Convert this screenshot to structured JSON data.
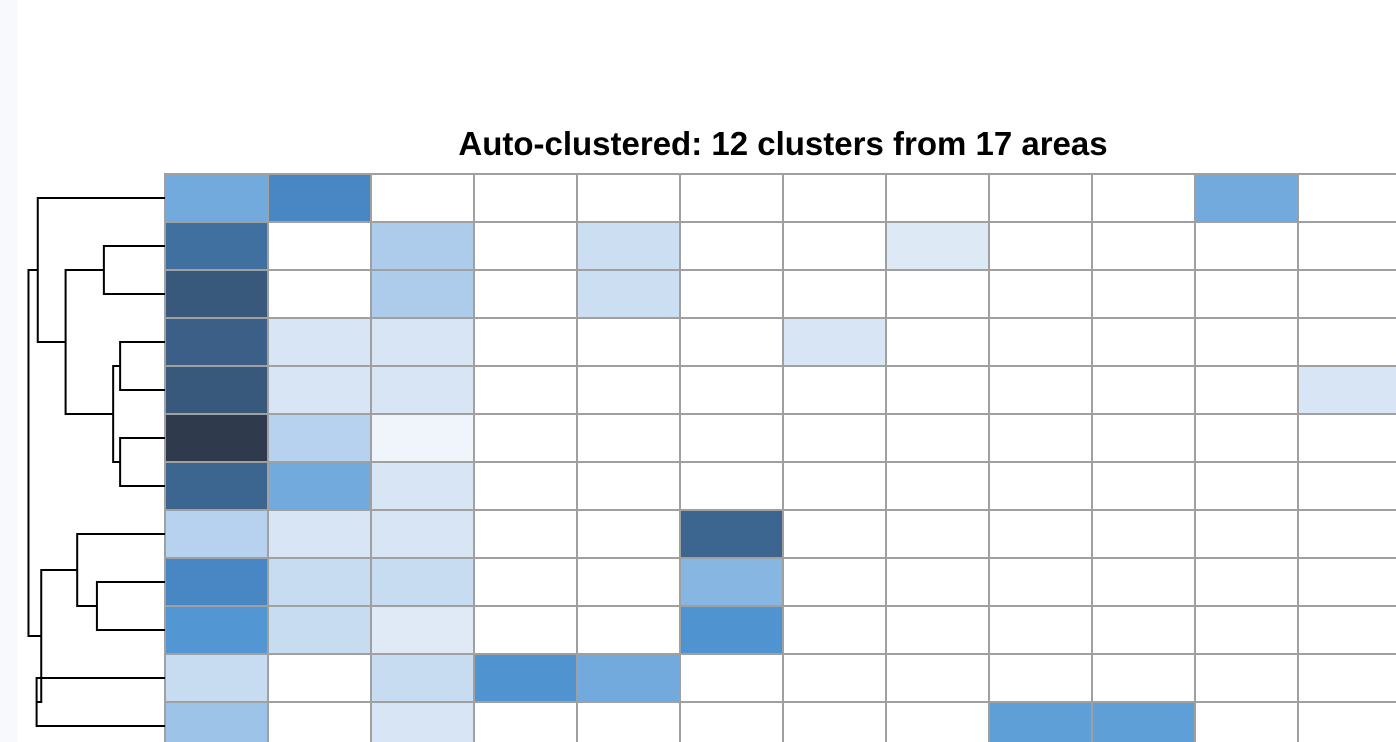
{
  "chart_data": {
    "type": "heatmap",
    "title": "Auto-clustered: 12 clusters from 17 areas",
    "xlabel": "",
    "ylabel": "",
    "n_rows": 12,
    "n_cols_visible": 12,
    "row_order": [
      1,
      2,
      3,
      4,
      5,
      6,
      7,
      8,
      9,
      10,
      11,
      12
    ],
    "values": [
      [
        0.52,
        0.72,
        0.0,
        0.0,
        0.0,
        0.0,
        0.0,
        0.0,
        0.0,
        0.0,
        0.52,
        0.0
      ],
      [
        0.82,
        0.0,
        0.35,
        0.0,
        0.25,
        0.0,
        0.0,
        0.17,
        0.0,
        0.0,
        0.0,
        0.0
      ],
      [
        0.9,
        0.0,
        0.35,
        0.0,
        0.25,
        0.0,
        0.0,
        0.0,
        0.0,
        0.0,
        0.0,
        0.0
      ],
      [
        0.88,
        0.2,
        0.2,
        0.0,
        0.0,
        0.0,
        0.2,
        0.0,
        0.0,
        0.0,
        0.0,
        0.0
      ],
      [
        0.9,
        0.2,
        0.2,
        0.0,
        0.0,
        0.0,
        0.0,
        0.0,
        0.0,
        0.0,
        0.0,
        0.2
      ],
      [
        1.0,
        0.32,
        0.08,
        0.0,
        0.0,
        0.0,
        0.0,
        0.0,
        0.0,
        0.0,
        0.0,
        0.0
      ],
      [
        0.86,
        0.52,
        0.2,
        0.0,
        0.0,
        0.0,
        0.0,
        0.0,
        0.0,
        0.0,
        0.0,
        0.0
      ],
      [
        0.32,
        0.2,
        0.2,
        0.0,
        0.0,
        0.86,
        0.0,
        0.0,
        0.0,
        0.0,
        0.0,
        0.0
      ],
      [
        0.72,
        0.26,
        0.26,
        0.0,
        0.0,
        0.46,
        0.0,
        0.0,
        0.0,
        0.0,
        0.0,
        0.0
      ],
      [
        0.62,
        0.26,
        0.16,
        0.0,
        0.0,
        0.64,
        0.0,
        0.0,
        0.0,
        0.0,
        0.0,
        0.0
      ],
      [
        0.26,
        0.0,
        0.26,
        0.64,
        0.52,
        0.0,
        0.0,
        0.0,
        0.0,
        0.0,
        0.0,
        0.0
      ],
      [
        0.4,
        0.0,
        0.2,
        0.0,
        0.0,
        0.0,
        0.0,
        0.0,
        0.58,
        0.58,
        0.0,
        0.0
      ]
    ],
    "color_scale": {
      "min": "#ffffff",
      "stops": [
        "#ffffff",
        "#e8eff9",
        "#cbdef2",
        "#a6c8ea",
        "#78aedf",
        "#5096d4",
        "#4682bf",
        "#3b6188",
        "#2f3a4c"
      ]
    },
    "grid_color": "#a0a0a0",
    "dendrogram": {
      "side": "left",
      "merges": [
        [
          4,
          5
        ],
        [
          6,
          7
        ],
        [
          -1,
          -2
        ],
        [
          2,
          3
        ],
        [
          -4,
          -3
        ],
        [
          9,
          10
        ],
        [
          11,
          12
        ],
        [
          1,
          -5
        ],
        [
          8,
          -6
        ],
        [
          -9,
          -7
        ],
        [
          -8,
          -10
        ]
      ],
      "heights": [
        0.18,
        0.18,
        0.24,
        0.32,
        0.65,
        0.38,
        0.9,
        0.89,
        0.55,
        0.86,
        0.97
      ]
    },
    "grid": true,
    "legend": "none"
  }
}
